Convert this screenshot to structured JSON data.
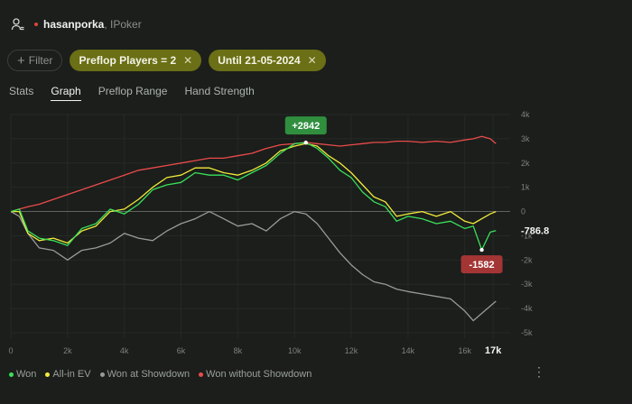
{
  "header": {
    "username": "hasanporka",
    "site": ", IPoker"
  },
  "filters": {
    "add_label": "Filter",
    "chips": [
      {
        "label": "Preflop Players = 2"
      },
      {
        "label": "Until 21-05-2024"
      }
    ]
  },
  "tabs": [
    {
      "label": "Stats",
      "active": false
    },
    {
      "label": "Graph",
      "active": true
    },
    {
      "label": "Preflop Range",
      "active": false
    },
    {
      "label": "Hand Strength",
      "active": false
    }
  ],
  "chart_data": {
    "type": "line",
    "x_ticks": [
      "0",
      "2k",
      "4k",
      "6k",
      "8k",
      "10k",
      "12k",
      "14k",
      "16k",
      "17k"
    ],
    "x_tick_values": [
      0,
      2000,
      4000,
      6000,
      8000,
      10000,
      12000,
      14000,
      16000,
      17000
    ],
    "y_ticks": [
      "4k",
      "3k",
      "2k",
      "1k",
      "0",
      "-1k",
      "-2k",
      "-3k",
      "-4k",
      "-5k"
    ],
    "y_tick_values": [
      4000,
      3000,
      2000,
      1000,
      0,
      -1000,
      -2000,
      -3000,
      -4000,
      -5000
    ],
    "xlim": [
      0,
      17600
    ],
    "ylim": [
      -5000,
      4000
    ],
    "annotations": {
      "max_label": "+2842",
      "min_label": "-1582",
      "end_label": "-786.8"
    },
    "series": [
      {
        "name": "Won",
        "color": "#39e05a",
        "x": [
          0,
          300,
          600,
          1000,
          1500,
          2000,
          2500,
          3000,
          3500,
          4000,
          4500,
          5000,
          5500,
          6000,
          6500,
          7000,
          7500,
          8000,
          8500,
          9000,
          9500,
          10000,
          10400,
          10800,
          11200,
          11600,
          12000,
          12400,
          12800,
          13200,
          13600,
          14000,
          14500,
          15000,
          15500,
          16000,
          16300,
          16600,
          16900,
          17100
        ],
        "y": [
          0,
          100,
          -800,
          -1100,
          -1200,
          -1400,
          -700,
          -500,
          100,
          -100,
          300,
          900,
          1100,
          1200,
          1600,
          1500,
          1500,
          1300,
          1600,
          1900,
          2400,
          2800,
          2842,
          2600,
          2200,
          1700,
          1400,
          800,
          400,
          200,
          -400,
          -200,
          -300,
          -500,
          -400,
          -700,
          -600,
          -1582,
          -850,
          -787
        ]
      },
      {
        "name": "All-in EV",
        "color": "#f1ea3a",
        "x": [
          0,
          300,
          600,
          1000,
          1500,
          2000,
          2500,
          3000,
          3500,
          4000,
          4500,
          5000,
          5500,
          6000,
          6500,
          7000,
          7500,
          8000,
          8500,
          9000,
          9500,
          10000,
          10400,
          10800,
          11200,
          11600,
          12000,
          12400,
          12800,
          13200,
          13600,
          14000,
          14500,
          15000,
          15500,
          16000,
          16300,
          16600,
          16900,
          17100
        ],
        "y": [
          0,
          0,
          -900,
          -1200,
          -1100,
          -1300,
          -800,
          -600,
          0,
          100,
          500,
          1000,
          1400,
          1500,
          1800,
          1800,
          1600,
          1500,
          1700,
          2000,
          2500,
          2700,
          2800,
          2700,
          2300,
          2000,
          1600,
          1100,
          600,
          400,
          -200,
          -100,
          0,
          -200,
          0,
          -400,
          -500,
          -300,
          -100,
          0
        ]
      },
      {
        "name": "Won at Showdown",
        "color": "#9a9a9a",
        "x": [
          0,
          300,
          600,
          1000,
          1500,
          2000,
          2500,
          3000,
          3500,
          4000,
          4500,
          5000,
          5500,
          6000,
          6500,
          7000,
          7500,
          8000,
          8500,
          9000,
          9500,
          10000,
          10400,
          10800,
          11200,
          11600,
          12000,
          12400,
          12800,
          13200,
          13600,
          14000,
          14500,
          15000,
          15500,
          16000,
          16300,
          16600,
          16900,
          17100
        ],
        "y": [
          0,
          -200,
          -900,
          -1500,
          -1600,
          -2000,
          -1600,
          -1500,
          -1300,
          -900,
          -1100,
          -1200,
          -800,
          -500,
          -300,
          0,
          -300,
          -600,
          -500,
          -800,
          -300,
          0,
          -100,
          -500,
          -1100,
          -1700,
          -2200,
          -2600,
          -2900,
          -3000,
          -3200,
          -3300,
          -3400,
          -3500,
          -3600,
          -4100,
          -4500,
          -4200,
          -3900,
          -3700
        ]
      },
      {
        "name": "Won without Showdown",
        "color": "#ea4b4b",
        "x": [
          0,
          300,
          600,
          1000,
          1500,
          2000,
          2500,
          3000,
          3500,
          4000,
          4500,
          5000,
          5500,
          6000,
          6500,
          7000,
          7500,
          8000,
          8500,
          9000,
          9500,
          10000,
          10400,
          10800,
          11200,
          11600,
          12000,
          12400,
          12800,
          13200,
          13600,
          14000,
          14500,
          15000,
          15500,
          16000,
          16300,
          16600,
          16900,
          17100
        ],
        "y": [
          0,
          100,
          200,
          300,
          500,
          700,
          900,
          1100,
          1300,
          1500,
          1700,
          1800,
          1900,
          2000,
          2100,
          2200,
          2200,
          2300,
          2400,
          2600,
          2750,
          2800,
          2850,
          2800,
          2750,
          2700,
          2750,
          2800,
          2850,
          2850,
          2900,
          2900,
          2850,
          2900,
          2850,
          2950,
          3000,
          3100,
          3000,
          2800
        ]
      }
    ]
  },
  "legend": [
    {
      "label": "Won",
      "color": "#39e05a"
    },
    {
      "label": "All-in EV",
      "color": "#f1ea3a"
    },
    {
      "label": "Won at Showdown",
      "color": "#9a9a9a"
    },
    {
      "label": "Won without Showdown",
      "color": "#ea4b4b"
    }
  ]
}
